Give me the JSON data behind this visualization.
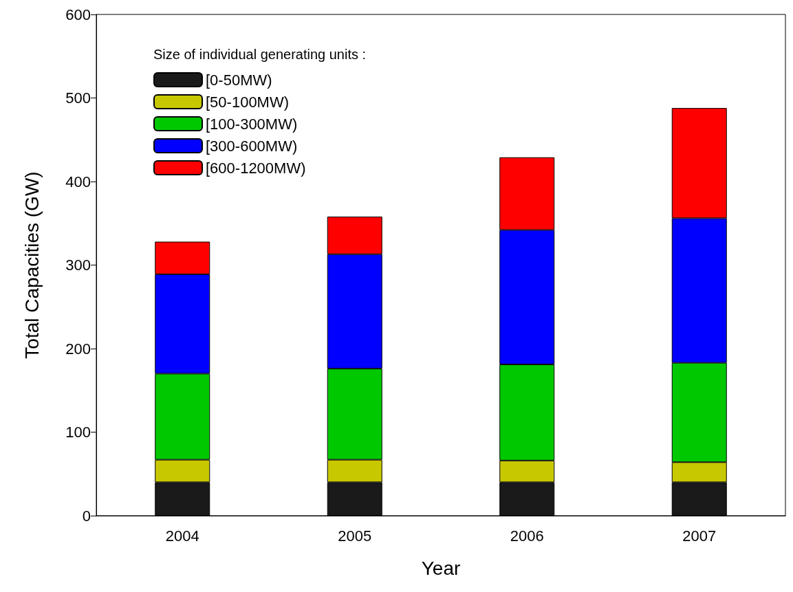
{
  "chart_data": {
    "type": "bar",
    "stacked": true,
    "xlabel": "Year",
    "ylabel": "Total Capacities (GW)",
    "legend_title": "Size of individual generating units :",
    "categories": [
      "2004",
      "2005",
      "2006",
      "2007"
    ],
    "series": [
      {
        "name": "[0-50MW)",
        "color": "#1a1a1a",
        "values": [
          40,
          40,
          40,
          40
        ]
      },
      {
        "name": "[50-100MW)",
        "color": "#c8c800",
        "values": [
          27,
          27,
          26,
          24
        ]
      },
      {
        "name": "[100-300MW)",
        "color": "#00c800",
        "values": [
          103,
          109,
          115,
          119
        ]
      },
      {
        "name": "[300-600MW)",
        "color": "#0000ff",
        "values": [
          119,
          137,
          161,
          173
        ]
      },
      {
        "name": "[600-1200MW)",
        "color": "#ff0000",
        "values": [
          39,
          45,
          87,
          132
        ]
      }
    ],
    "ylim": [
      0,
      600
    ],
    "yticks": [
      0,
      100,
      200,
      300,
      400,
      500,
      600
    ],
    "grid": false,
    "legend": "top left"
  }
}
